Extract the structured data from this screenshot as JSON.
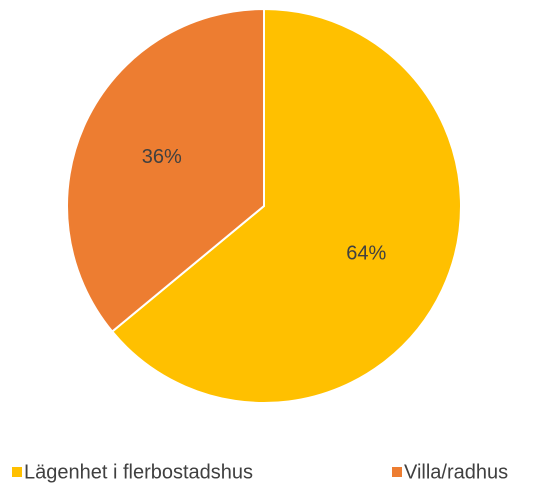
{
  "chart_data": {
    "type": "pie",
    "categories": [
      "Lägenhet i flerbostadshus",
      "Villa/radhus"
    ],
    "values": [
      64,
      36
    ],
    "value_labels": [
      "64%",
      "36%"
    ],
    "colors": [
      "#FFC000",
      "#ED7D31"
    ],
    "legend": "bottom"
  }
}
